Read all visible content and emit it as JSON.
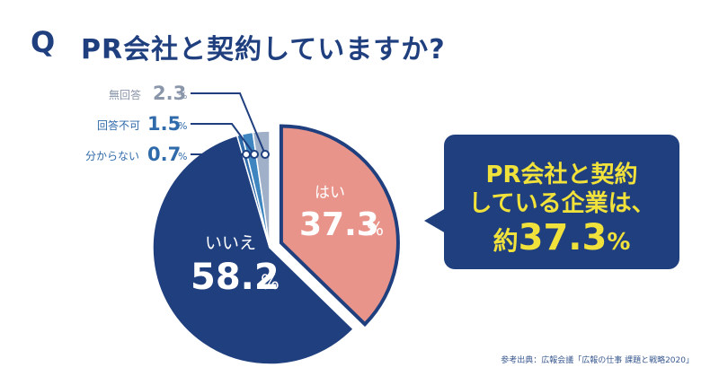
{
  "question": {
    "q": "Q",
    "text": "PR会社と契約していますか?"
  },
  "chart_data": {
    "type": "pie",
    "slices": [
      {
        "label": "はい",
        "value": 37.3,
        "color": "#e8948a"
      },
      {
        "label": "いいえ",
        "value": 58.2,
        "color": "#1f3f7f"
      },
      {
        "label": "分からない",
        "value": 0.7,
        "color": "#2f6aaa"
      },
      {
        "label": "回答不可",
        "value": 1.5,
        "color": "#3f86c0"
      },
      {
        "label": "無回答",
        "value": 2.3,
        "color": "#9fb0c8"
      }
    ],
    "unit": "%"
  },
  "labels": {
    "yes_label": "はい",
    "yes_value": "37.3",
    "pct": "%",
    "no_label": "いいえ",
    "no_value": "58.2",
    "noans_label": "無回答",
    "noans_value": "2.3",
    "cant_label": "回答不可",
    "cant_value": "1.5",
    "unknown_label": "分からない",
    "unknown_value": "0.7"
  },
  "callout": {
    "line1": "PR会社と契約",
    "line2": "している企業は、",
    "prefix": "約",
    "value": "37.3",
    "pct": "%"
  },
  "source": "参考出典：広報会議「広報の仕事 課題と戦略2020」"
}
